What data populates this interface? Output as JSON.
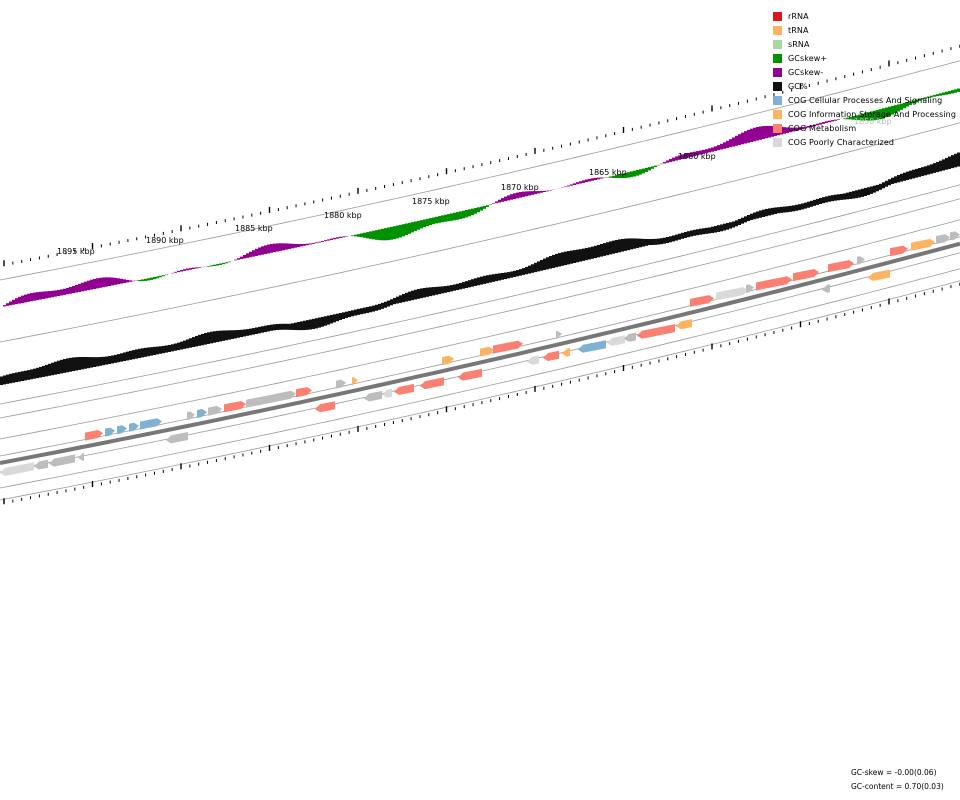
{
  "legend": [
    {
      "label": "rRNA",
      "color": "#d7191c"
    },
    {
      "label": "tRNA",
      "color": "#fdb462"
    },
    {
      "label": "sRNA",
      "color": "#a6d99b"
    },
    {
      "label": "GCskew+",
      "color": "#009100"
    },
    {
      "label": "GCskew-",
      "color": "#910091"
    },
    {
      "label": "GC%",
      "color": "#111111"
    },
    {
      "label": "COG Cellular Processes And Signaling",
      "color": "#80b1d3"
    },
    {
      "label": "COG Information Storage And Processing",
      "color": "#fdb462"
    },
    {
      "label": "COG Metabolism",
      "color": "#fb8072"
    },
    {
      "label": "COG Poorly Characterized",
      "color": "#d9d9d9"
    }
  ],
  "scale_labels": [
    "1895 kbp",
    "1890 kbp",
    "1885 kbp",
    "1880 kbp",
    "1875 kbp",
    "1870 kbp",
    "1865 kbp",
    "1860 kbp",
    "1850 kbp"
  ],
  "stats": {
    "gc_skew": "GC-skew = -0.00(0.06)",
    "gc_content": "GC-content = 0.70(0.03)"
  }
}
